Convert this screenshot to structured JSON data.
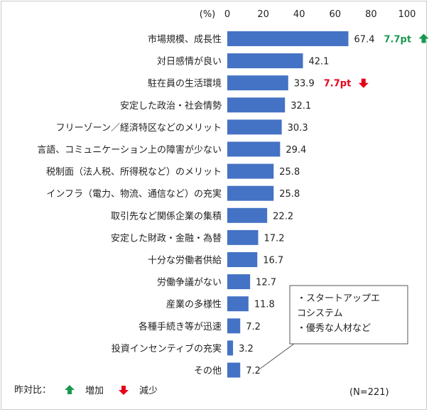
{
  "chart_data": {
    "type": "bar",
    "orientation": "horizontal",
    "unit_label": "(%)",
    "xlim": [
      0,
      100
    ],
    "xticks": [
      0,
      20,
      40,
      60,
      80,
      100
    ],
    "categories": [
      "市場規模、成長性",
      "対日感情が良い",
      "駐在員の生活環境",
      "安定した政治・社会情勢",
      "フリーゾーン／経済特区などのメリット",
      "言語、コミュニケーション上の障害が少ない",
      "税制面（法人税、所得税など）のメリット",
      "インフラ（電力、物流、通信など）の充実",
      "取引先など関係企業の集積",
      "安定した財政・金融・為替",
      "十分な労働者供給",
      "労働争議がない",
      "産業の多様性",
      "各種手続き等が迅速",
      "投資インセンティブの充実",
      "その他"
    ],
    "values": [
      67.4,
      42.1,
      33.9,
      32.1,
      30.3,
      29.4,
      25.8,
      25.8,
      22.2,
      17.2,
      16.7,
      12.7,
      11.8,
      7.2,
      3.2,
      7.2
    ],
    "value_labels": [
      "67.4",
      "42.1",
      "33.9",
      "32.1",
      "30.3",
      "29.4",
      "25.8",
      "25.8",
      "22.2",
      "17.2",
      "16.7",
      "12.7",
      "11.8",
      "7.2",
      "3.2",
      "7.2"
    ],
    "yoy_annotations": [
      {
        "category_index": 0,
        "text": "7.7pt",
        "direction": "up",
        "color": "#1a9850"
      },
      {
        "category_index": 2,
        "text": "7.7pt",
        "direction": "down",
        "color": "#e6001a"
      }
    ],
    "callout": {
      "category_index": 15,
      "lines": [
        "・スタートアップエ",
        "コシステム",
        "・優秀な人材など"
      ]
    },
    "legend": {
      "title": "昨対比：",
      "items": [
        {
          "label": "増加",
          "direction": "up",
          "color": "#1a9850"
        },
        {
          "label": "減少",
          "direction": "down",
          "color": "#e6001a"
        }
      ]
    },
    "sample_note": "(N=221)",
    "bar_color": "#4472c4",
    "grid": false
  }
}
